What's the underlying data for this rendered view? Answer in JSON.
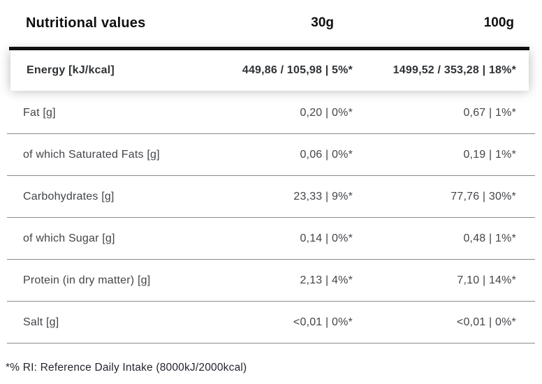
{
  "table": {
    "title": "Nutritional values",
    "col_30_label": "30g",
    "col_100_label": "100g",
    "rows": [
      {
        "label": "Energy [kJ/kcal]",
        "v30": "449,86 / 105,98 | 5%*",
        "v100": "1499,52 / 353,28 | 18%*",
        "highlighted": true
      },
      {
        "label": "Fat [g]",
        "v30": "0,20 | 0%*",
        "v100": "0,67 | 1%*"
      },
      {
        "label": "of which Saturated Fats [g]",
        "v30": "0,06 | 0%*",
        "v100": "0,19 | 1%*"
      },
      {
        "label": "Carbohydrates [g]",
        "v30": "23,33 | 9%*",
        "v100": "77,76 | 30%*"
      },
      {
        "label": "of which Sugar [g]",
        "v30": "0,14 | 0%*",
        "v100": "0,48 | 1%*"
      },
      {
        "label": "Protein (in dry matter) [g]",
        "v30": "2,13 | 4%*",
        "v100": "7,10 | 14%*"
      },
      {
        "label": "Salt [g]",
        "v30": "<0,01 | 0%*",
        "v100": "<0,01 | 0%*"
      }
    ],
    "footnote": "*% RI: Reference Daily Intake (8000kJ/2000kcal)"
  },
  "colors": {
    "page_bg": "#ffffff",
    "title_text": "#0f0f0f",
    "rule_black": "#111111",
    "card_bg": "#ffffff",
    "energy_text": "#2f3235",
    "body_text": "#424549",
    "divider": "#87898c",
    "footnote_text": "#23262e"
  }
}
